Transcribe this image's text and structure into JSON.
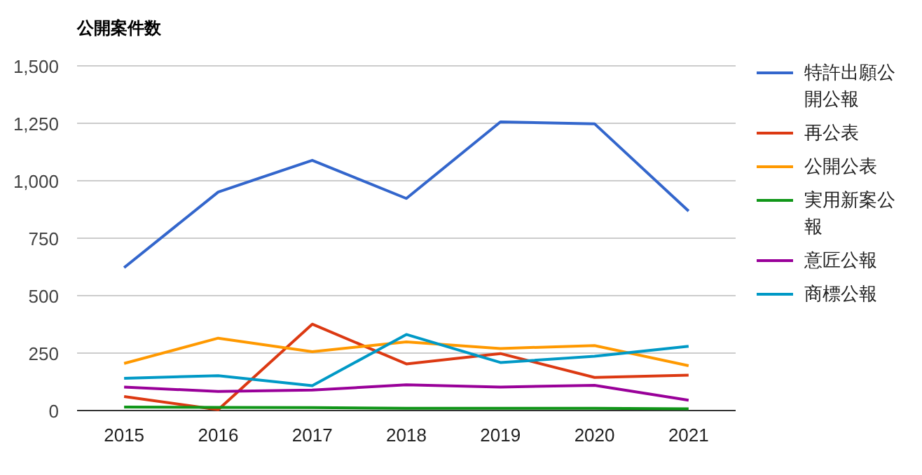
{
  "chart_data": {
    "type": "line",
    "title": "公開案件数",
    "categories": [
      "2015",
      "2016",
      "2017",
      "2018",
      "2019",
      "2020",
      "2021"
    ],
    "ylim": [
      0,
      1500
    ],
    "yticks": [
      0,
      {
        "value": 250,
        "label": "250"
      },
      {
        "value": 500,
        "label": "500"
      },
      {
        "value": 750,
        "label": "750"
      },
      {
        "value": 1000,
        "label": "1,000"
      },
      {
        "value": 1250,
        "label": "1,250"
      },
      {
        "value": 1500,
        "label": "1,500"
      }
    ],
    "grid": "y",
    "legend": "right",
    "marker": "none",
    "line_style": "solid",
    "series": [
      {
        "name": "特許出願公開公報",
        "color": "#3366cc",
        "values": [
          622,
          951,
          1089,
          923,
          1256,
          1248,
          868
        ]
      },
      {
        "name": "再公表",
        "color": "#dc3912",
        "values": [
          61,
          4,
          376,
          203,
          248,
          144,
          154
        ]
      },
      {
        "name": "公開公表",
        "color": "#ff9900",
        "values": [
          205,
          315,
          256,
          299,
          270,
          283,
          195
        ]
      },
      {
        "name": "実用新案公報",
        "color": "#109618",
        "values": [
          15,
          14,
          13,
          10,
          10,
          10,
          8
        ]
      },
      {
        "name": "意匠公報",
        "color": "#990099",
        "values": [
          102,
          83,
          89,
          112,
          102,
          110,
          45
        ]
      },
      {
        "name": "商標公報",
        "color": "#0099c6",
        "values": [
          140,
          152,
          108,
          331,
          209,
          236,
          280
        ]
      }
    ]
  }
}
